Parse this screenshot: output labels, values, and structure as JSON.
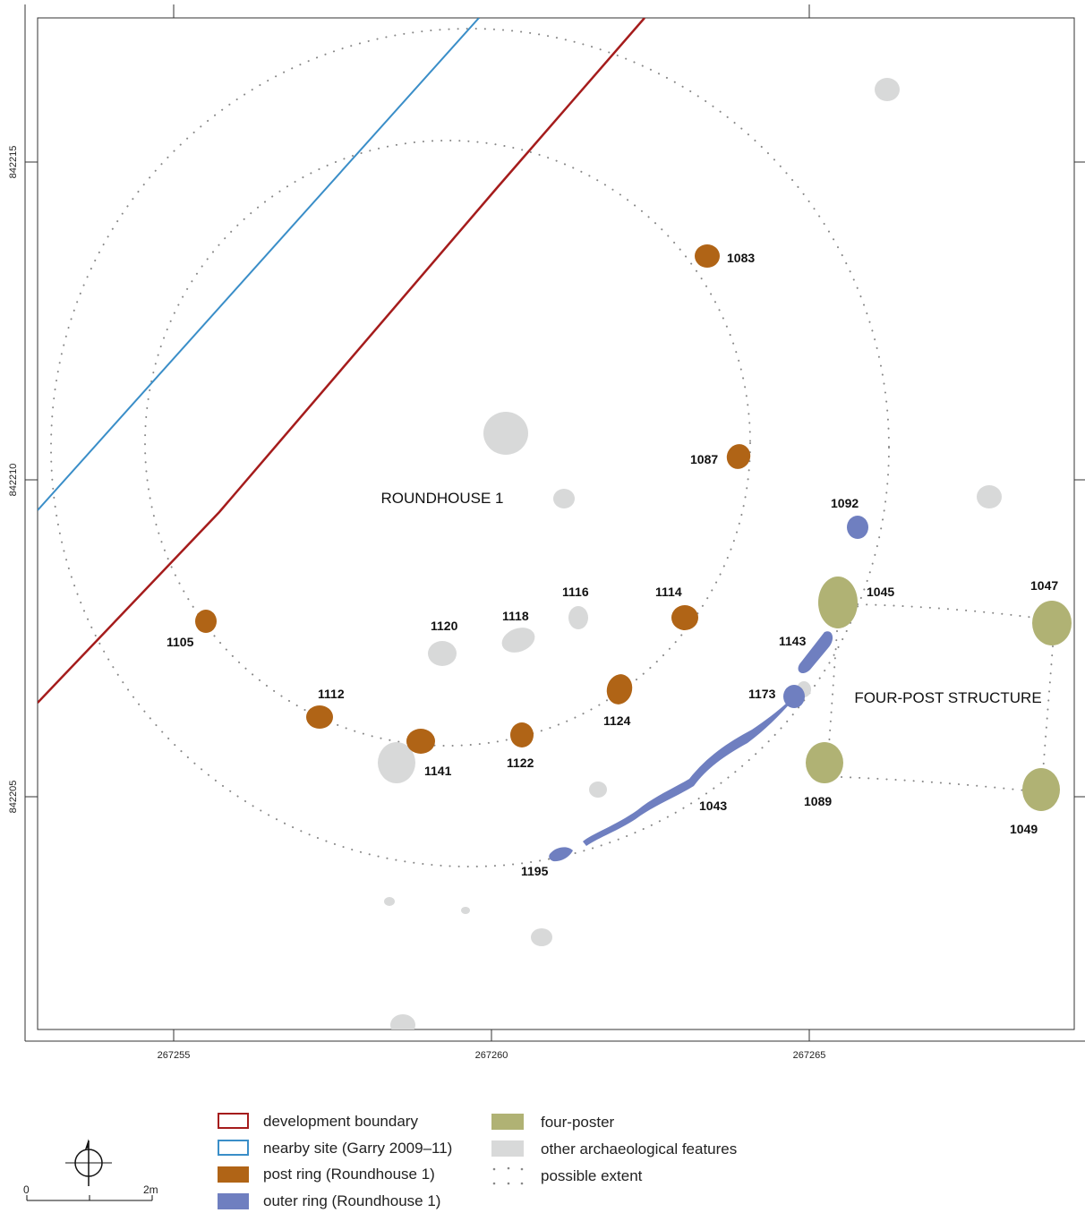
{
  "map": {
    "labels": {
      "roundhouse": "ROUNDHOUSE 1",
      "four_post": "FOUR-POST STRUCTURE"
    },
    "x_ticks": [
      "267255",
      "267260",
      "267265"
    ],
    "y_ticks": [
      "842215",
      "842210",
      "842205"
    ],
    "features": {
      "post_ring": [
        {
          "id": "1083",
          "label": "1083"
        },
        {
          "id": "1087",
          "label": "1087"
        },
        {
          "id": "1114",
          "label": "1114"
        },
        {
          "id": "1124",
          "label": "1124"
        },
        {
          "id": "1122",
          "label": "1122"
        },
        {
          "id": "1141",
          "label": "1141"
        },
        {
          "id": "1112",
          "label": "1112"
        },
        {
          "id": "1105",
          "label": "1105"
        }
      ],
      "outer_ring": [
        {
          "id": "1092",
          "label": "1092"
        },
        {
          "id": "1143",
          "label": "1143"
        },
        {
          "id": "1173",
          "label": "1173"
        },
        {
          "id": "1043",
          "label": "1043"
        },
        {
          "id": "1195",
          "label": "1195"
        }
      ],
      "four_poster": [
        {
          "id": "1045",
          "label": "1045"
        },
        {
          "id": "1047",
          "label": "1047"
        },
        {
          "id": "1089",
          "label": "1089"
        },
        {
          "id": "1049",
          "label": "1049"
        }
      ],
      "other": [
        {
          "id": "1116",
          "label": "1116"
        },
        {
          "id": "1118",
          "label": "1118"
        },
        {
          "id": "1120",
          "label": "1120"
        }
      ]
    },
    "colors": {
      "development_boundary": "#a51c1c",
      "nearby_site": "#3a8ec8",
      "post_ring": "#b06416",
      "outer_ring": "#6f7fc0",
      "four_poster": "#b0b274",
      "other": "#d8d9d9",
      "possible_extent": "#888888"
    }
  },
  "legend": {
    "development_boundary": "development boundary",
    "nearby_site": "nearby site (Garry 2009–11)",
    "post_ring": "post ring (Roundhouse 1)",
    "outer_ring": "outer ring (Roundhouse 1)",
    "four_poster": "four-poster",
    "other": "other archaeological features",
    "possible_extent": "possible extent"
  },
  "scale_bar": {
    "start": "0",
    "end": "2m"
  }
}
